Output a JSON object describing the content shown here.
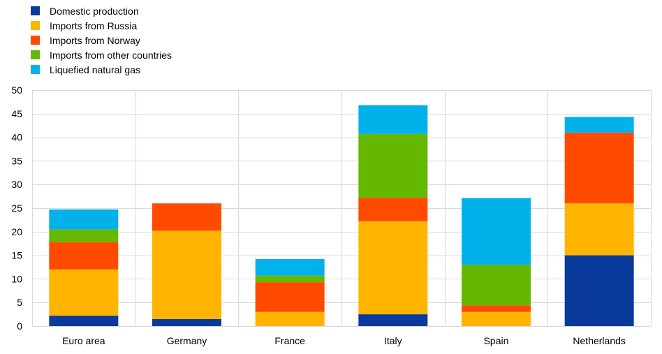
{
  "chart_data": {
    "type": "bar",
    "stacked": true,
    "categories": [
      "Euro area",
      "Germany",
      "France",
      "Italy",
      "Spain",
      "Netherlands"
    ],
    "series": [
      {
        "name": "Domestic production",
        "color": "#0a3a9c",
        "values": [
          2.2,
          1.5,
          0,
          2.5,
          0,
          15.0
        ]
      },
      {
        "name": "Imports from Russia",
        "color": "#ffb400",
        "values": [
          9.8,
          18.7,
          3.0,
          19.7,
          3.0,
          11.0
        ]
      },
      {
        "name": "Imports from Norway",
        "color": "#ff4b00",
        "values": [
          5.8,
          5.8,
          6.3,
          5.0,
          1.4,
          15.0
        ]
      },
      {
        "name": "Imports from other countries",
        "color": "#65b800",
        "values": [
          2.7,
          0,
          1.4,
          13.5,
          8.6,
          0
        ]
      },
      {
        "name": "Liquefied natural gas",
        "color": "#00b1ea",
        "values": [
          4.2,
          0,
          3.5,
          6.1,
          14.1,
          3.3
        ]
      }
    ],
    "yticks": [
      "0",
      "5",
      "10",
      "15",
      "20",
      "25",
      "30",
      "35",
      "40",
      "45",
      "50"
    ],
    "ylim": [
      0,
      50
    ],
    "grid": true,
    "legend_position": "top-left"
  }
}
